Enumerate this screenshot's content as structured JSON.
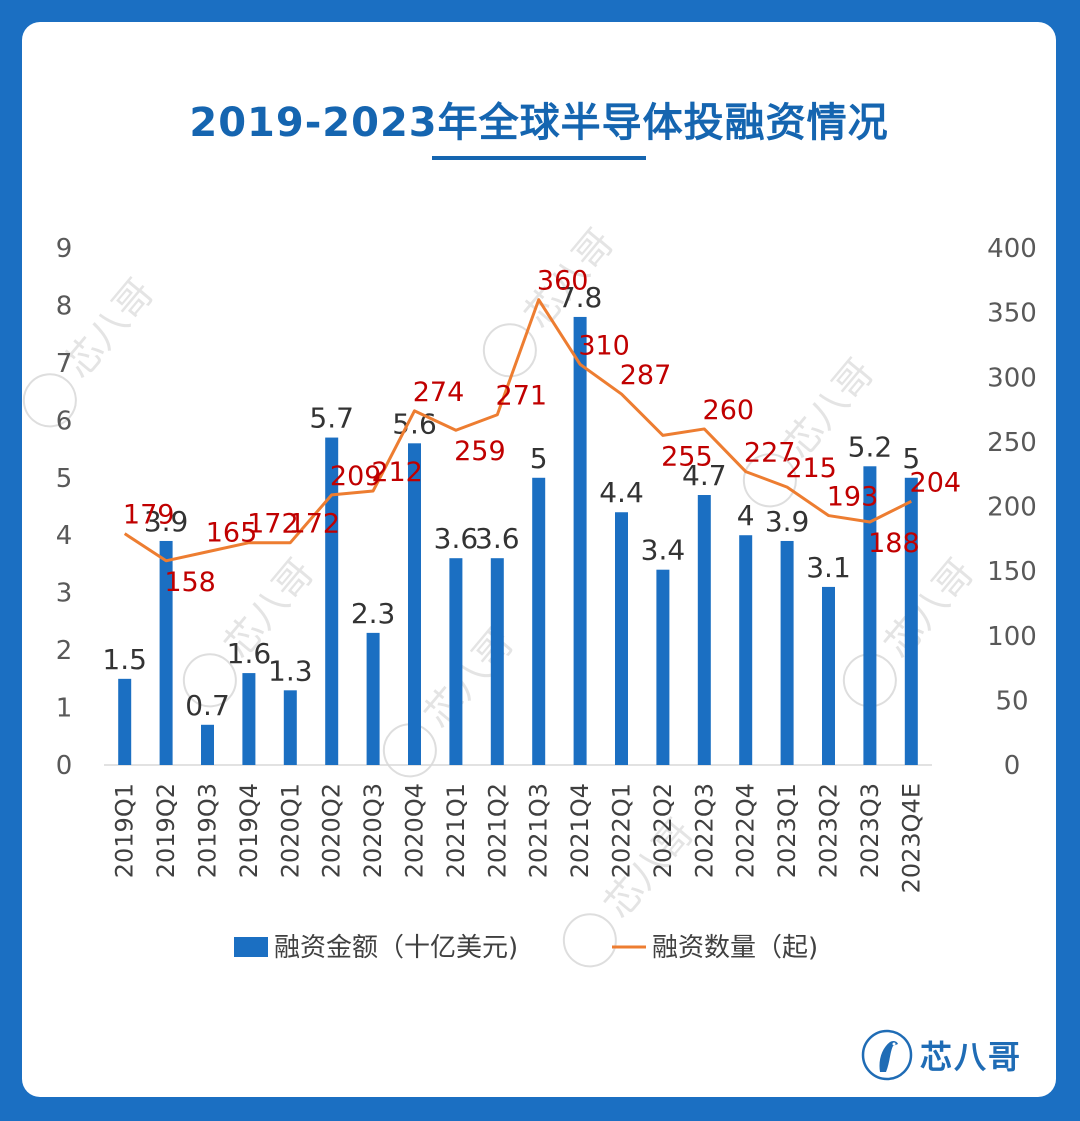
{
  "page": {
    "title": "2019-2023年全球半导体投融资情况",
    "brand": "芯八哥",
    "watermark": "芯八哥"
  },
  "colors": {
    "background": "#1b6fc2",
    "title": "#1565b0",
    "bar": "#1b6fc2",
    "line": "#ed7d31",
    "line_label": "#c00000",
    "bar_label": "#333333"
  },
  "chart_data": {
    "type": "bar",
    "categories": [
      "2019Q1",
      "2019Q2",
      "2019Q3",
      "2019Q4",
      "2020Q1",
      "2020Q2",
      "2020Q3",
      "2020Q4",
      "2021Q1",
      "2021Q2",
      "2021Q3",
      "2021Q4",
      "2022Q1",
      "2022Q2",
      "2022Q3",
      "2022Q4",
      "2023Q1",
      "2023Q2",
      "2023Q3",
      "2023Q4E"
    ],
    "series": [
      {
        "name": "融资金额（十亿美元)",
        "type": "bar",
        "axis": "left",
        "values": [
          1.5,
          3.9,
          0.7,
          1.6,
          1.3,
          5.7,
          2.3,
          5.6,
          3.6,
          3.6,
          5,
          7.8,
          4.4,
          3.4,
          4.7,
          4,
          3.9,
          3.1,
          5.2,
          5
        ],
        "labels": [
          "1.5",
          "3.9",
          "0.7",
          "1.6",
          "1.3",
          "5.7",
          "2.3",
          "5.6",
          "3.6",
          "3.6",
          "5",
          "7.8",
          "4.4",
          "3.4",
          "4.7",
          "4",
          "3.9",
          "3.1",
          "5.2",
          "5"
        ]
      },
      {
        "name": "融资数量（起)",
        "type": "line",
        "axis": "right",
        "values": [
          179,
          158,
          165,
          172,
          172,
          209,
          212,
          274,
          259,
          271,
          360,
          310,
          287,
          255,
          260,
          227,
          215,
          193,
          188,
          204
        ],
        "labels": [
          "179",
          "158",
          "165",
          "172",
          "172",
          "209",
          "212",
          "274",
          "259",
          "271",
          "360",
          "310",
          "287",
          "255",
          "260",
          "227",
          "215",
          "193",
          "188",
          "204"
        ]
      }
    ],
    "y_left": {
      "min": 0,
      "max": 9,
      "ticks": [
        "0",
        "1",
        "2",
        "3",
        "4",
        "5",
        "6",
        "7",
        "8",
        "9"
      ]
    },
    "y_right": {
      "min": 0,
      "max": 400,
      "ticks": [
        "0",
        "50",
        "100",
        "150",
        "200",
        "250",
        "300",
        "350",
        "400"
      ]
    },
    "grid": false,
    "legend_position": "bottom"
  }
}
